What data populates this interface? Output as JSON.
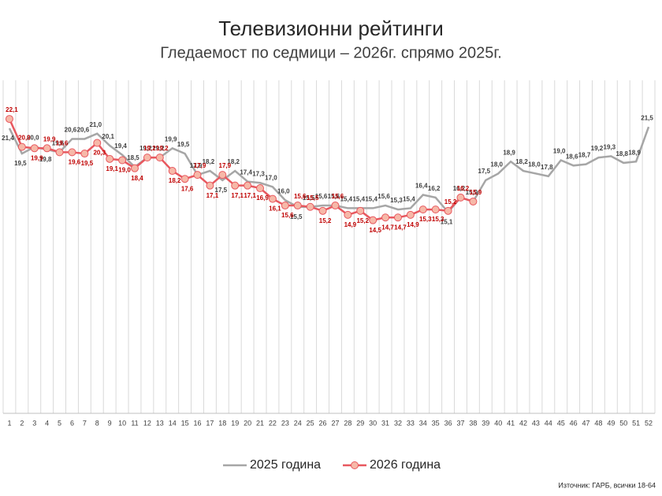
{
  "chart_data": {
    "type": "line",
    "title": "Телевизионни рейтинги",
    "subtitle": "Гледаемост по седмици – 2026г. спрямо 2025г.",
    "source": "Източник: ГАРБ, всички 18-64",
    "categories": [
      "1",
      "2",
      "3",
      "4",
      "5",
      "6",
      "7",
      "8",
      "9",
      "10",
      "11",
      "12",
      "13",
      "14",
      "15",
      "16",
      "17",
      "18",
      "19",
      "20",
      "21",
      "22",
      "23",
      "24",
      "25",
      "26",
      "27",
      "28",
      "29",
      "30",
      "31",
      "32",
      "33",
      "34",
      "35",
      "36",
      "37",
      "38",
      "39",
      "40",
      "41",
      "42",
      "43",
      "44",
      "45",
      "46",
      "47",
      "48",
      "49",
      "50",
      "51",
      "52"
    ],
    "ylim": [
      0,
      25
    ],
    "grid": true,
    "legend": "bottom",
    "series": [
      {
        "name": "2025 година",
        "color": "#a6a6a6",
        "values": [
          21.4,
          19.5,
          20.0,
          19.8,
          19.6,
          20.6,
          20.6,
          21.0,
          20.1,
          19.4,
          18.5,
          19.2,
          19.2,
          19.9,
          19.5,
          17.9,
          18.2,
          17.5,
          18.2,
          17.4,
          17.3,
          17.0,
          16.0,
          15.5,
          15.5,
          15.6,
          15.6,
          15.4,
          15.4,
          15.4,
          15.6,
          15.3,
          15.4,
          16.4,
          16.2,
          15.1,
          16.2,
          15.9,
          17.5,
          18.0,
          18.9,
          18.2,
          18.0,
          17.8,
          19.0,
          18.6,
          18.7,
          19.2,
          19.3,
          18.8,
          18.9,
          21.5
        ],
        "value_labels": [
          "21,4",
          "19,5",
          "20,0",
          "19,8",
          "19,6",
          "20,6",
          "20,6",
          "21,0",
          "20,1",
          "19,4",
          "18,5",
          "19,2",
          "19,2",
          "19,9",
          "19,5",
          "17,9",
          "18,2",
          "17,5",
          "18,2",
          "17,4",
          "17,3",
          "17,0",
          "16,0",
          "15,5",
          "15,5",
          "15,6",
          "15,6",
          "15,4",
          "15,4",
          "15,4",
          "15,6",
          "15,3",
          "15,4",
          "16,4",
          "16,2",
          "15,1",
          "16,2",
          "15,9",
          "17,5",
          "18,0",
          "18,9",
          "18,2",
          "18,0",
          "17,8",
          "19,0",
          "18,6",
          "18,7",
          "19,2",
          "19,3",
          "18,8",
          "18,9",
          "21,5"
        ]
      },
      {
        "name": "2026 година",
        "color": "#e8585f",
        "marker_color": "#f6b8a8",
        "values": [
          22.1,
          20.0,
          19.9,
          19.9,
          19.6,
          19.6,
          19.5,
          20.3,
          19.1,
          19.0,
          18.4,
          19.2,
          19.2,
          18.2,
          17.6,
          17.9,
          17.1,
          17.9,
          17.1,
          17.1,
          16.9,
          16.1,
          15.6,
          15.6,
          15.5,
          15.2,
          15.6,
          14.9,
          15.2,
          14.5,
          14.7,
          14.7,
          14.9,
          15.3,
          15.3,
          15.2,
          16.2,
          15.9,
          null,
          null,
          null,
          null,
          null,
          null,
          null,
          null,
          null,
          null,
          null,
          null,
          null,
          null
        ],
        "value_labels": [
          "22,1",
          "20,0",
          "19,9",
          "19,9",
          "19,6",
          "19,6",
          "19,5",
          "20,3",
          "19,1",
          "19,0",
          "18,4",
          "19,2",
          "19,2",
          "18,2",
          "17,6",
          "17,9",
          "17,1",
          "17,9",
          "17,1",
          "17,1",
          "16,9",
          "16,1",
          "15,6",
          "15,6",
          "15,5",
          "15,2",
          "15,6",
          "14,9",
          "15,2",
          "14,5",
          "14,7",
          "14,7",
          "14,9",
          "15,3",
          "15,3",
          "15,2",
          "16,2",
          "15,9",
          null,
          null,
          null,
          null,
          null,
          null,
          null,
          null,
          null,
          null,
          null,
          null,
          null,
          null
        ]
      }
    ]
  }
}
